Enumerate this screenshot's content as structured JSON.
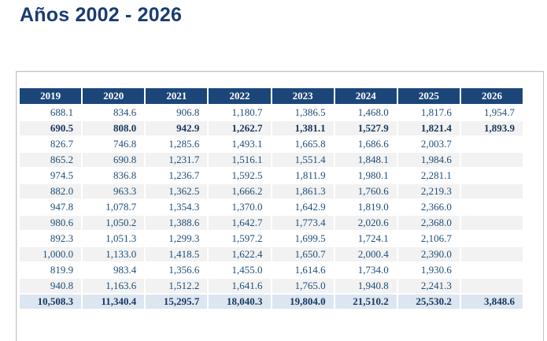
{
  "title": "Años 2002 - 2026",
  "colors": {
    "title_color": "#1b3c74",
    "header_bg": "#1c4679",
    "value_color": "#1f4e79",
    "strong_color": "#17375e",
    "stripe_bg": "#f2f2f2",
    "total_bg": "#dce6f1"
  },
  "table": {
    "columns": [
      "2019",
      "2020",
      "2021",
      "2022",
      "2023",
      "2024",
      "2025",
      "2026"
    ],
    "rows": [
      {
        "style": "normal",
        "values": [
          "688.1",
          "834.6",
          "906.8",
          "1,180.7",
          "1,386.5",
          "1,468.0",
          "1,817.6",
          "1,954.7"
        ]
      },
      {
        "style": "bold",
        "values": [
          "690.5",
          "808.0",
          "942.9",
          "1,262.7",
          "1,381.1",
          "1,527.9",
          "1,821.4",
          "1,893.9"
        ]
      },
      {
        "style": "normal",
        "values": [
          "826.7",
          "746.8",
          "1,285.6",
          "1,493.1",
          "1,665.8",
          "1,686.6",
          "2,003.7",
          ""
        ]
      },
      {
        "style": "normal",
        "values": [
          "865.2",
          "690.8",
          "1,231.7",
          "1,516.1",
          "1,551.4",
          "1,848.1",
          "1,984.6",
          ""
        ]
      },
      {
        "style": "normal",
        "values": [
          "974.5",
          "836.8",
          "1,236.7",
          "1,592.5",
          "1,811.9",
          "1,980.1",
          "2,281.1",
          ""
        ]
      },
      {
        "style": "normal",
        "values": [
          "882.0",
          "963.3",
          "1,362.5",
          "1,666.2",
          "1,861.3",
          "1,760.6",
          "2,219.3",
          ""
        ]
      },
      {
        "style": "normal",
        "values": [
          "947.8",
          "1,078.7",
          "1,354.3",
          "1,370.0",
          "1,642.9",
          "1,819.0",
          "2,366.0",
          ""
        ]
      },
      {
        "style": "normal",
        "values": [
          "980.6",
          "1,050.2",
          "1,388.6",
          "1,642.7",
          "1,773.4",
          "2,020.6",
          "2,368.0",
          ""
        ]
      },
      {
        "style": "normal",
        "values": [
          "892.3",
          "1,051.3",
          "1,299.3",
          "1,597.2",
          "1,699.5",
          "1,724.1",
          "2,106.7",
          ""
        ]
      },
      {
        "style": "normal",
        "values": [
          "1,000.0",
          "1,133.0",
          "1,418.5",
          "1,622.4",
          "1,650.7",
          "2,000.4",
          "2,390.0",
          ""
        ]
      },
      {
        "style": "normal",
        "values": [
          "819.9",
          "983.4",
          "1,356.6",
          "1,455.0",
          "1,614.6",
          "1,734.0",
          "1,930.6",
          ""
        ]
      },
      {
        "style": "normal",
        "values": [
          "940.8",
          "1,163.6",
          "1,512.2",
          "1,641.6",
          "1,765.0",
          "1,940.8",
          "2,241.3",
          ""
        ]
      }
    ],
    "total_row": {
      "style": "total",
      "values": [
        "10,508.3",
        "11,340.4",
        "15,295.7",
        "18,040.3",
        "19,804.0",
        "21,510.2",
        "25,530.2",
        "3,848.6"
      ]
    }
  }
}
